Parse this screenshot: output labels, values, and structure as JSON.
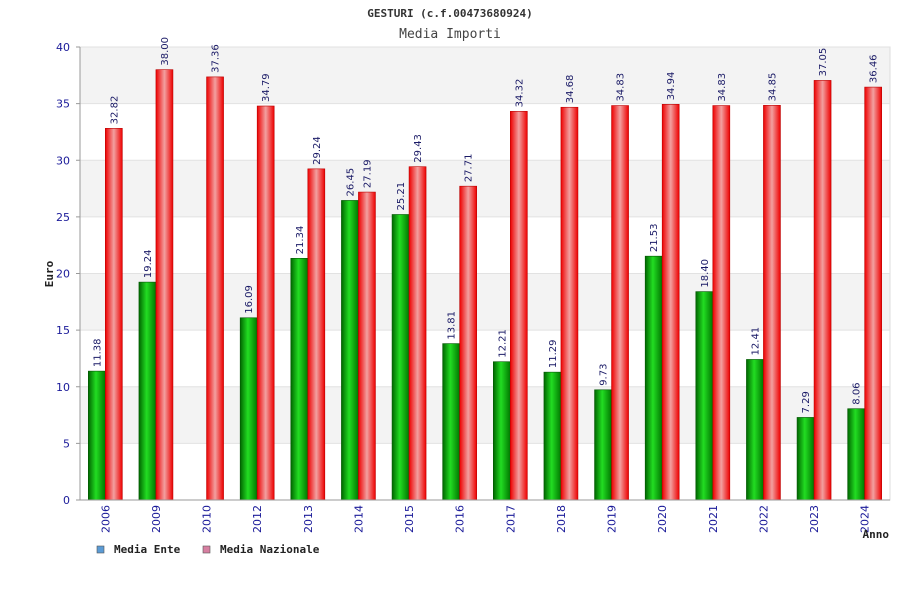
{
  "chart_data": {
    "type": "bar",
    "title": "GESTURI (c.f.00473680924)",
    "subtitle": "Media Importi",
    "xlabel": "Anno",
    "ylabel": "Euro",
    "ylim": [
      0,
      40
    ],
    "yticks": [
      0,
      5,
      10,
      15,
      20,
      25,
      30,
      35,
      40
    ],
    "grid": true,
    "legend_position": "bottom-left",
    "categories": [
      "2006",
      "2009",
      "2010",
      "2012",
      "2013",
      "2014",
      "2015",
      "2016",
      "2017",
      "2018",
      "2019",
      "2020",
      "2021",
      "2022",
      "2023",
      "2024"
    ],
    "series": [
      {
        "name": "Media Ente",
        "color": "#00aa00",
        "legend_color": "#5b9bd5",
        "values": [
          11.38,
          19.24,
          null,
          16.09,
          21.34,
          26.45,
          25.21,
          13.81,
          12.21,
          11.29,
          9.73,
          21.53,
          18.4,
          12.41,
          7.29,
          8.06
        ],
        "labels": [
          "11.38",
          "19.24",
          "",
          "16.09",
          "21.34",
          "26.45",
          "25.21",
          "13.81",
          "12.21",
          "11.29",
          "9.73",
          "21.53",
          "18.40",
          "12.41",
          "7.29",
          "8.06"
        ]
      },
      {
        "name": "Media Nazionale",
        "color": "#ee1111",
        "legend_color": "#d77fa1",
        "values": [
          32.82,
          38.0,
          37.36,
          34.79,
          29.24,
          27.19,
          29.43,
          27.71,
          34.32,
          34.68,
          34.83,
          34.94,
          34.83,
          34.85,
          37.05,
          36.46
        ],
        "labels": [
          "32.82",
          "38.00",
          "37.36",
          "34.79",
          "29.24",
          "27.19",
          "29.43",
          "27.71",
          "34.32",
          "34.68",
          "34.83",
          "34.94",
          "34.83",
          "34.85",
          "37.05",
          "36.46"
        ]
      }
    ]
  }
}
